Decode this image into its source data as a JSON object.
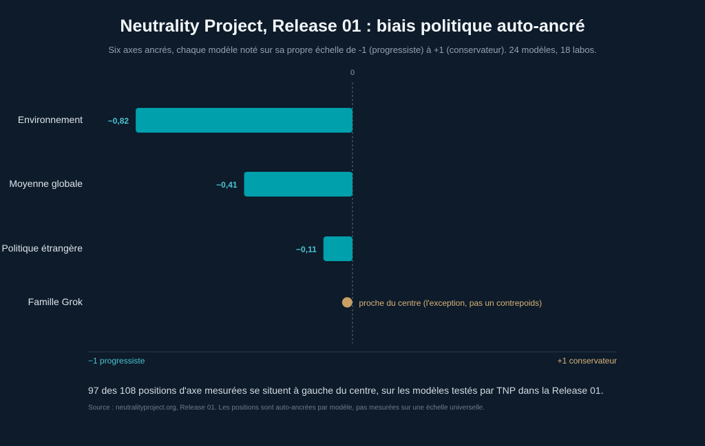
{
  "header": {
    "title": "Neutrality Project, Release 01 : biais politique auto-ancré",
    "subtitle": "Six axes ancrés, chaque modèle noté sur sa propre échelle de -1 (progressiste) à +1 (conservateur). 24 modèles, 18 labos."
  },
  "chart_data": {
    "type": "bar",
    "orientation": "horizontal",
    "categories": [
      "Environnement",
      "Moyenne globale",
      "Politique étrangère",
      "Famille Grok"
    ],
    "values": [
      -0.82,
      -0.41,
      -0.11,
      null
    ],
    "value_labels": [
      "−0,82",
      "−0,41",
      "−0,11",
      ""
    ],
    "xlim": [
      -1,
      1
    ],
    "zero_label": "0",
    "axis_left_label": "−1 progressiste",
    "axis_right_label": "+1 conservateur",
    "point": {
      "category": "Famille Grok",
      "value": -0.02,
      "label": "proche du centre (l'exception, pas un contrepoids)"
    },
    "grid": false,
    "colors": {
      "bar": "#00a0ad",
      "value_label": "#4cc3d0",
      "point": "#c9a065",
      "point_label": "#d9b37a",
      "category_label": "#dde4ea",
      "zero_line": "#5b6b7b",
      "axis_line": "#2a3a4a",
      "left_axis_label": "#4cc3d0",
      "right_axis_label": "#d9b37a"
    }
  },
  "footer": {
    "note": "97 des 108 positions d'axe mesurées se situent à gauche du centre, sur les modèles testés par TNP dans la Release 01.",
    "source": "Source : neutralityproject.org, Release 01. Les positions sont auto-ancrées par modèle, pas mesurées sur une échelle universelle."
  }
}
